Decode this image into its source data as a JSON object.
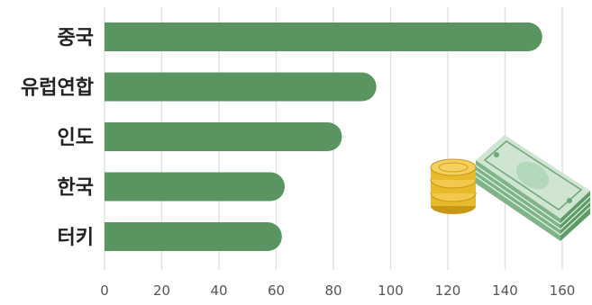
{
  "chart_data": {
    "type": "bar",
    "orientation": "horizontal",
    "categories": [
      "중국",
      "유럽연합",
      "인도",
      "한국",
      "터키"
    ],
    "values": [
      153,
      95,
      83,
      63,
      62
    ],
    "xlim": [
      0,
      160
    ],
    "xticks": [
      0,
      20,
      40,
      60,
      80,
      100,
      120,
      140,
      160
    ],
    "grid": "vertical",
    "title": "",
    "xlabel": "",
    "ylabel": ""
  },
  "colors": {
    "bar": "#5a9460",
    "grid": "#e2e2e2",
    "coin": "#e8b92a",
    "coin_edge": "#c99716",
    "bill": "#9fcba6",
    "bill_dark": "#4f8a5a"
  },
  "decoration": {
    "icon": "money-stack-and-coins-icon"
  }
}
